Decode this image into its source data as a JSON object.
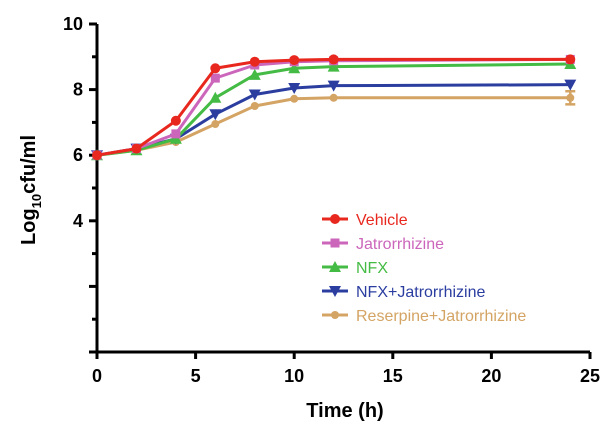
{
  "chart_data": {
    "type": "line",
    "xlabel": "Time (h)",
    "ylabel_main": "Log",
    "ylabel_sub": "10",
    "ylabel_rest": "cfu/ml",
    "xlim": [
      0,
      25
    ],
    "ylim": [
      0,
      10
    ],
    "x_ticks": [
      "0",
      "5",
      "10",
      "15",
      "20",
      "25"
    ],
    "y_ticks": [
      "4",
      "6",
      "8",
      "10"
    ],
    "grid": false,
    "legend_position": "center-right",
    "series": [
      {
        "name": "Vehicle",
        "color": "#e8281e",
        "marker": "circle",
        "x": [
          0,
          2,
          4,
          6,
          8,
          10,
          12,
          24
        ],
        "y": [
          6.0,
          6.2,
          7.05,
          8.65,
          8.85,
          8.9,
          8.92,
          8.92
        ]
      },
      {
        "name": "Jatrorrhizine",
        "color": "#cc66bb",
        "marker": "square",
        "x": [
          0,
          2,
          4,
          6,
          8,
          10,
          12,
          24
        ],
        "y": [
          6.0,
          6.2,
          6.65,
          8.35,
          8.75,
          8.85,
          8.88,
          8.92
        ]
      },
      {
        "name": "NFX",
        "color": "#44bb44",
        "marker": "triangle-up",
        "x": [
          0,
          2,
          4,
          6,
          8,
          10,
          12,
          24
        ],
        "y": [
          6.0,
          6.15,
          6.5,
          7.75,
          8.45,
          8.65,
          8.7,
          8.78
        ]
      },
      {
        "name": "NFX+Jatrorrhizine",
        "color": "#2b3ea0",
        "marker": "triangle-down",
        "x": [
          0,
          2,
          4,
          6,
          8,
          10,
          12,
          24
        ],
        "y": [
          6.0,
          6.2,
          6.5,
          7.25,
          7.85,
          8.05,
          8.12,
          8.15
        ]
      },
      {
        "name": "Reserpine+Jatrorrhizine",
        "color": "#d4a464",
        "marker": "circle-small",
        "x": [
          0,
          2,
          4,
          6,
          8,
          10,
          12,
          24
        ],
        "y": [
          6.0,
          6.15,
          6.4,
          6.95,
          7.5,
          7.72,
          7.75,
          7.75
        ],
        "error": [
          0,
          0,
          0,
          0,
          0,
          0,
          0,
          0.2
        ]
      }
    ]
  }
}
